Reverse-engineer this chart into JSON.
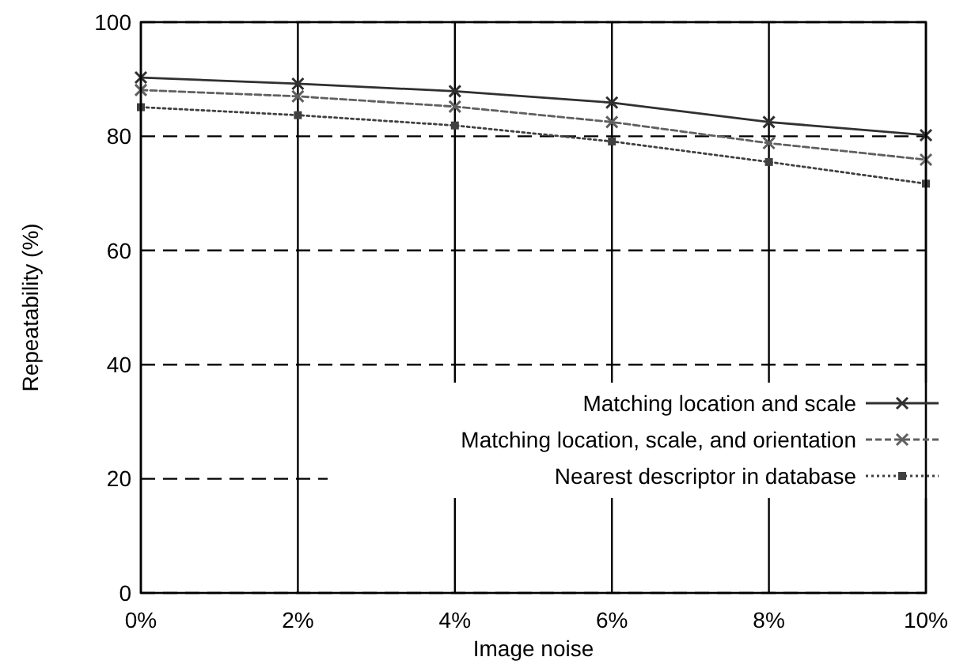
{
  "chart_data": {
    "type": "line",
    "xlabel": "Image noise",
    "ylabel": "Repeatability (%)",
    "x": [
      0,
      2,
      4,
      6,
      8,
      10
    ],
    "xlim": [
      0,
      10
    ],
    "xticks": [
      {
        "value": 0,
        "label": "0%"
      },
      {
        "value": 2,
        "label": "2%"
      },
      {
        "value": 4,
        "label": "4%"
      },
      {
        "value": 6,
        "label": "6%"
      },
      {
        "value": 8,
        "label": "8%"
      },
      {
        "value": 10,
        "label": "10%"
      }
    ],
    "ylim": [
      0,
      100
    ],
    "yticks": [
      0,
      20,
      40,
      60,
      80,
      100
    ],
    "grid": true,
    "legend": "bottom right",
    "series": [
      {
        "name": "Matching location and scale",
        "color": "#303030",
        "line_style": "solid",
        "marker": "cross",
        "values": [
          90.3,
          89.2,
          87.9,
          85.9,
          82.5,
          80.2
        ]
      },
      {
        "name": "Matching location, scale, and orientation",
        "color": "#606060",
        "line_style": "dashed",
        "marker": "cross",
        "values": [
          88.1,
          87.0,
          85.2,
          82.5,
          78.8,
          75.9
        ]
      },
      {
        "name": "Nearest descriptor in database",
        "color": "#404040",
        "line_style": "dotted",
        "marker": "square",
        "values": [
          85.1,
          83.7,
          81.9,
          79.1,
          75.5,
          71.7
        ]
      }
    ]
  }
}
